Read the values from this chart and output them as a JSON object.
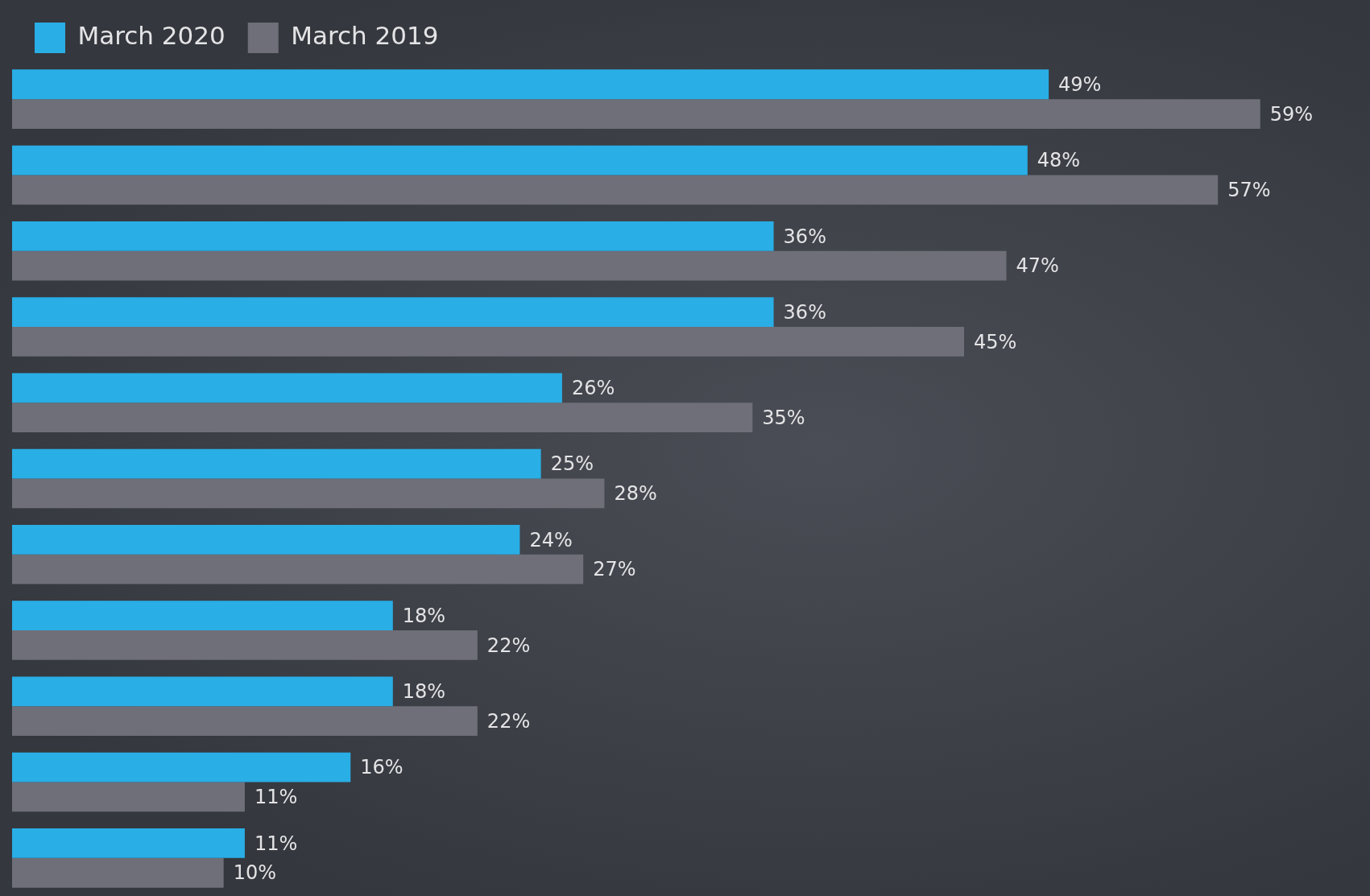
{
  "chart_data": {
    "type": "bar",
    "orientation": "horizontal",
    "categories": [
      null,
      null,
      null,
      null,
      null,
      null,
      null,
      null,
      null,
      null,
      null
    ],
    "series": [
      {
        "name": "March 2020",
        "color": "#29aee6",
        "values": [
          49,
          48,
          36,
          36,
          26,
          25,
          24,
          18,
          18,
          16,
          11
        ],
        "value_labels": [
          "49%",
          "48%",
          "36%",
          "36%",
          "26%",
          "25%",
          "24%",
          "18%",
          "18%",
          "16%",
          "11%"
        ]
      },
      {
        "name": "March 2019",
        "color": "#6e6f78",
        "values": [
          59,
          57,
          47,
          45,
          35,
          28,
          27,
          22,
          22,
          11,
          10
        ],
        "value_labels": [
          "59%",
          "57%",
          "47%",
          "45%",
          "35%",
          "28%",
          "27%",
          "22%",
          "22%",
          "11%",
          "10%"
        ]
      }
    ],
    "legend": "top left",
    "tick_labels": false
  }
}
